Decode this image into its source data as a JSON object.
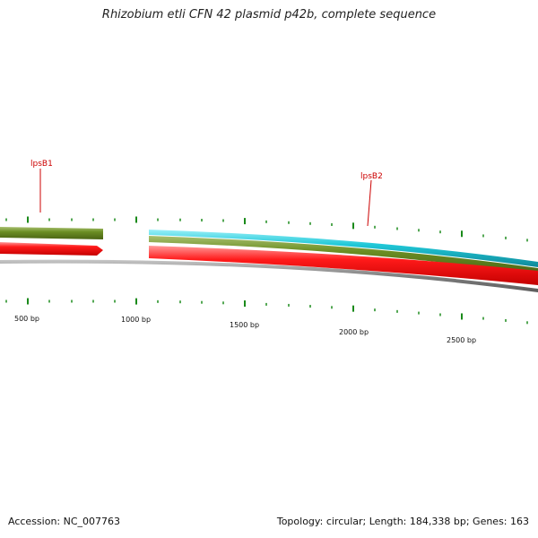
{
  "title": "Rhizobium etli CFN 42 plasmid p42b, complete sequence",
  "genes": [
    {
      "name": "lpsB1"
    },
    {
      "name": "lpsB2"
    }
  ],
  "scale_labels": [
    "500 bp",
    "1000 bp",
    "1500 bp",
    "2000 bp",
    "2500 bp"
  ],
  "footer": {
    "accession": "Accession: NC_007763",
    "summary": "Topology: circular; Length: 184,338 bp; Genes: 163"
  },
  "colors": {
    "cds_forward": "#ff0000",
    "gene_track": "#6b8e23",
    "rna_track": "#20c8d8",
    "backbone": "#808080",
    "ticks": "#1a8a1a",
    "label_red": "#cc0000"
  }
}
